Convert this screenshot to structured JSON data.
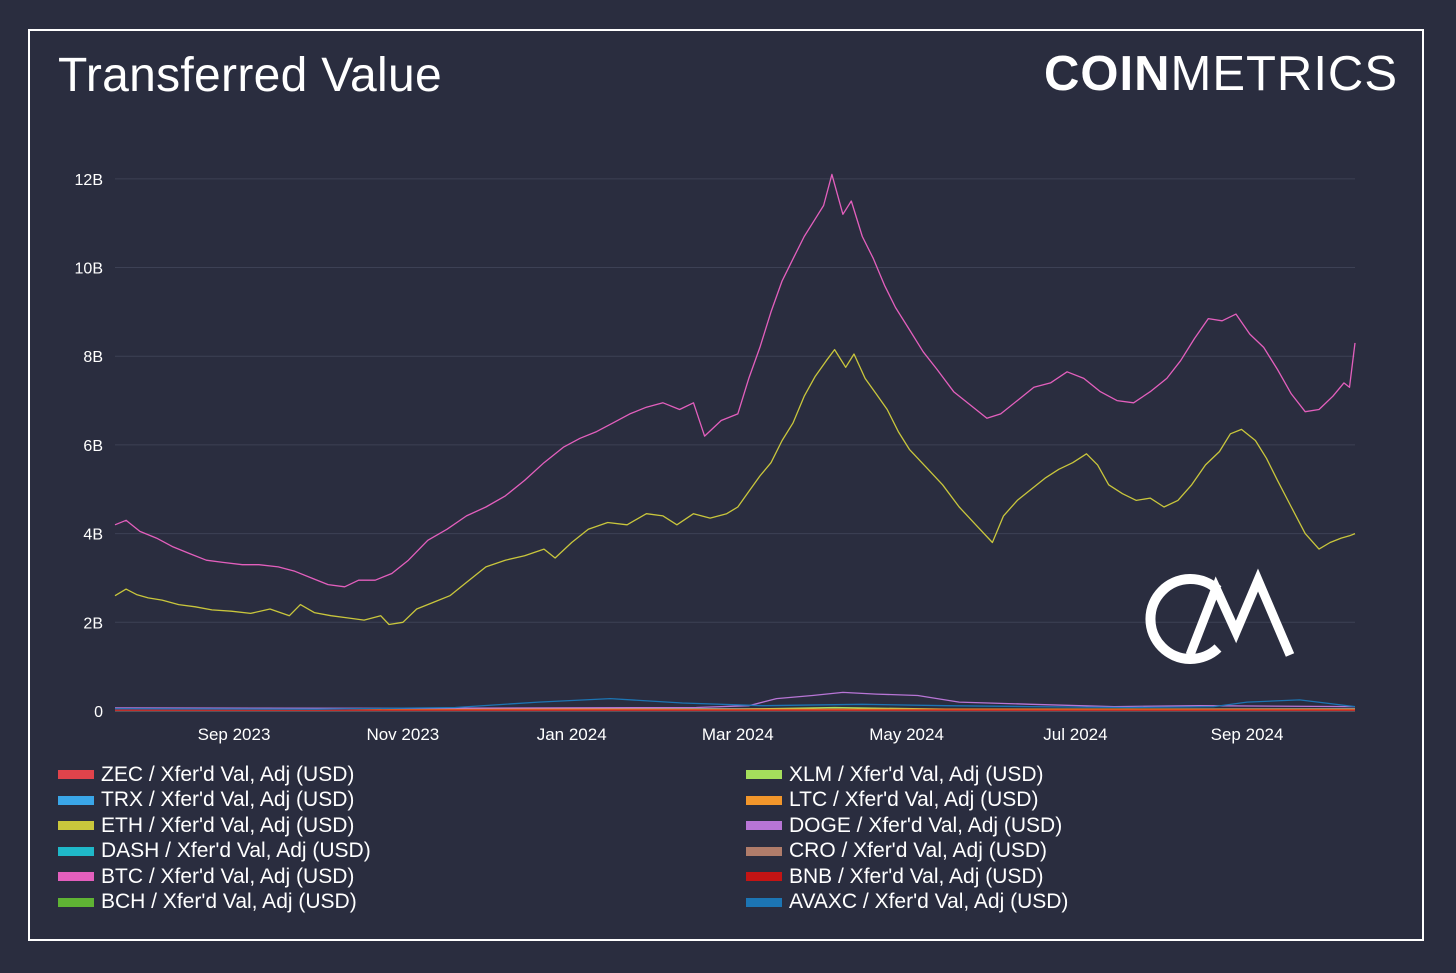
{
  "title": "Transferred Value",
  "brand": {
    "bold": "COIN",
    "light": "METRICS"
  },
  "watermark": "CM",
  "colors": {
    "background": "#2a2d3f",
    "text": "#ffffff",
    "grid": "#3d4155"
  },
  "chart_data": {
    "type": "line",
    "xlabel": "",
    "ylabel": "",
    "x_range": [
      "2023-07-20",
      "2024-10-10"
    ],
    "ylim": [
      0,
      12200000000
    ],
    "yticks": [
      {
        "value": 0,
        "label": "0"
      },
      {
        "value": 2000000000,
        "label": "2B"
      },
      {
        "value": 4000000000,
        "label": "4B"
      },
      {
        "value": 6000000000,
        "label": "6B"
      },
      {
        "value": 8000000000,
        "label": "8B"
      },
      {
        "value": 10000000000,
        "label": "10B"
      },
      {
        "value": 12000000000,
        "label": "12B"
      }
    ],
    "xticks": [
      {
        "date": "2023-09-01",
        "label": "Sep 2023"
      },
      {
        "date": "2023-11-01",
        "label": "Nov 2023"
      },
      {
        "date": "2024-01-01",
        "label": "Jan 2024"
      },
      {
        "date": "2024-03-01",
        "label": "Mar 2024"
      },
      {
        "date": "2024-05-01",
        "label": "May 2024"
      },
      {
        "date": "2024-07-01",
        "label": "Jul 2024"
      },
      {
        "date": "2024-09-01",
        "label": "Sep 2024"
      }
    ],
    "grid": true,
    "legend_position": "bottom",
    "series": [
      {
        "name": "ZEC / Xfer'd Val, Adj (USD)",
        "color": "#e0434b",
        "points": [
          [
            "2023-07-20",
            0.01
          ],
          [
            "2024-10-10",
            0.01
          ]
        ]
      },
      {
        "name": "TRX / Xfer'd Val, Adj (USD)",
        "color": "#3aa6e8",
        "points": [
          [
            "2023-07-20",
            0.05
          ],
          [
            "2023-10-15",
            0.03
          ],
          [
            "2024-01-01",
            0.06
          ],
          [
            "2024-03-01",
            0.05
          ],
          [
            "2024-05-01",
            0.04
          ],
          [
            "2024-07-01",
            0.04
          ],
          [
            "2024-10-10",
            0.05
          ]
        ]
      },
      {
        "name": "ETH / Xfer'd Val, Adj (USD)",
        "color": "#c9c63c",
        "points": [
          [
            "2023-07-20",
            2.6
          ],
          [
            "2023-07-24",
            2.75
          ],
          [
            "2023-07-28",
            2.62
          ],
          [
            "2023-08-01",
            2.55
          ],
          [
            "2023-08-06",
            2.5
          ],
          [
            "2023-08-12",
            2.4
          ],
          [
            "2023-08-18",
            2.35
          ],
          [
            "2023-08-24",
            2.28
          ],
          [
            "2023-08-31",
            2.25
          ],
          [
            "2023-09-07",
            2.2
          ],
          [
            "2023-09-14",
            2.3
          ],
          [
            "2023-09-21",
            2.15
          ],
          [
            "2023-09-25",
            2.4
          ],
          [
            "2023-09-30",
            2.22
          ],
          [
            "2023-10-06",
            2.15
          ],
          [
            "2023-10-12",
            2.1
          ],
          [
            "2023-10-18",
            2.05
          ],
          [
            "2023-10-24",
            2.15
          ],
          [
            "2023-10-27",
            1.95
          ],
          [
            "2023-11-01",
            2.0
          ],
          [
            "2023-11-06",
            2.3
          ],
          [
            "2023-11-12",
            2.45
          ],
          [
            "2023-11-18",
            2.6
          ],
          [
            "2023-11-24",
            2.9
          ],
          [
            "2023-12-01",
            3.25
          ],
          [
            "2023-12-08",
            3.4
          ],
          [
            "2023-12-15",
            3.5
          ],
          [
            "2023-12-22",
            3.65
          ],
          [
            "2023-12-26",
            3.45
          ],
          [
            "2024-01-01",
            3.8
          ],
          [
            "2024-01-07",
            4.1
          ],
          [
            "2024-01-14",
            4.25
          ],
          [
            "2024-01-21",
            4.2
          ],
          [
            "2024-01-28",
            4.45
          ],
          [
            "2024-02-03",
            4.4
          ],
          [
            "2024-02-08",
            4.2
          ],
          [
            "2024-02-14",
            4.45
          ],
          [
            "2024-02-20",
            4.35
          ],
          [
            "2024-02-26",
            4.45
          ],
          [
            "2024-03-01",
            4.6
          ],
          [
            "2024-03-05",
            4.95
          ],
          [
            "2024-03-09",
            5.3
          ],
          [
            "2024-03-13",
            5.6
          ],
          [
            "2024-03-17",
            6.1
          ],
          [
            "2024-03-21",
            6.5
          ],
          [
            "2024-03-25",
            7.1
          ],
          [
            "2024-03-29",
            7.55
          ],
          [
            "2024-04-02",
            7.9
          ],
          [
            "2024-04-05",
            8.15
          ],
          [
            "2024-04-09",
            7.75
          ],
          [
            "2024-04-12",
            8.05
          ],
          [
            "2024-04-16",
            7.5
          ],
          [
            "2024-04-20",
            7.15
          ],
          [
            "2024-04-24",
            6.8
          ],
          [
            "2024-04-28",
            6.3
          ],
          [
            "2024-05-02",
            5.9
          ],
          [
            "2024-05-08",
            5.5
          ],
          [
            "2024-05-14",
            5.1
          ],
          [
            "2024-05-20",
            4.6
          ],
          [
            "2024-05-26",
            4.2
          ],
          [
            "2024-06-01",
            3.8
          ],
          [
            "2024-06-05",
            4.4
          ],
          [
            "2024-06-10",
            4.75
          ],
          [
            "2024-06-15",
            5.0
          ],
          [
            "2024-06-20",
            5.25
          ],
          [
            "2024-06-25",
            5.45
          ],
          [
            "2024-06-30",
            5.6
          ],
          [
            "2024-07-05",
            5.8
          ],
          [
            "2024-07-09",
            5.55
          ],
          [
            "2024-07-13",
            5.1
          ],
          [
            "2024-07-18",
            4.9
          ],
          [
            "2024-07-23",
            4.75
          ],
          [
            "2024-07-28",
            4.8
          ],
          [
            "2024-08-02",
            4.6
          ],
          [
            "2024-08-07",
            4.75
          ],
          [
            "2024-08-12",
            5.1
          ],
          [
            "2024-08-17",
            5.55
          ],
          [
            "2024-08-22",
            5.85
          ],
          [
            "2024-08-26",
            6.25
          ],
          [
            "2024-08-30",
            6.35
          ],
          [
            "2024-09-04",
            6.1
          ],
          [
            "2024-09-08",
            5.7
          ],
          [
            "2024-09-12",
            5.2
          ],
          [
            "2024-09-17",
            4.6
          ],
          [
            "2024-09-22",
            4.0
          ],
          [
            "2024-09-27",
            3.65
          ],
          [
            "2024-10-01",
            3.8
          ],
          [
            "2024-10-05",
            3.9
          ],
          [
            "2024-10-08",
            3.95
          ],
          [
            "2024-10-10",
            4.0
          ]
        ]
      },
      {
        "name": "DASH / Xfer'd Val, Adj (USD)",
        "color": "#1fb8c9",
        "points": [
          [
            "2023-07-20",
            0.01
          ],
          [
            "2024-10-10",
            0.01
          ]
        ]
      },
      {
        "name": "BTC / Xfer'd Val, Adj (USD)",
        "color": "#e35fbd",
        "points": [
          [
            "2023-07-20",
            4.2
          ],
          [
            "2023-07-24",
            4.3
          ],
          [
            "2023-07-29",
            4.05
          ],
          [
            "2023-08-04",
            3.9
          ],
          [
            "2023-08-10",
            3.7
          ],
          [
            "2023-08-16",
            3.55
          ],
          [
            "2023-08-22",
            3.4
          ],
          [
            "2023-08-28",
            3.35
          ],
          [
            "2023-09-04",
            3.3
          ],
          [
            "2023-09-10",
            3.3
          ],
          [
            "2023-09-17",
            3.25
          ],
          [
            "2023-09-23",
            3.15
          ],
          [
            "2023-09-29",
            3.0
          ],
          [
            "2023-10-05",
            2.85
          ],
          [
            "2023-10-11",
            2.8
          ],
          [
            "2023-10-16",
            2.95
          ],
          [
            "2023-10-22",
            2.95
          ],
          [
            "2023-10-28",
            3.1
          ],
          [
            "2023-11-03",
            3.4
          ],
          [
            "2023-11-10",
            3.85
          ],
          [
            "2023-11-17",
            4.1
          ],
          [
            "2023-11-24",
            4.4
          ],
          [
            "2023-12-01",
            4.6
          ],
          [
            "2023-12-08",
            4.85
          ],
          [
            "2023-12-15",
            5.2
          ],
          [
            "2023-12-22",
            5.6
          ],
          [
            "2023-12-29",
            5.95
          ],
          [
            "2024-01-04",
            6.15
          ],
          [
            "2024-01-10",
            6.3
          ],
          [
            "2024-01-16",
            6.5
          ],
          [
            "2024-01-22",
            6.7
          ],
          [
            "2024-01-28",
            6.85
          ],
          [
            "2024-02-03",
            6.95
          ],
          [
            "2024-02-09",
            6.8
          ],
          [
            "2024-02-14",
            6.95
          ],
          [
            "2024-02-18",
            6.2
          ],
          [
            "2024-02-24",
            6.55
          ],
          [
            "2024-03-01",
            6.7
          ],
          [
            "2024-03-05",
            7.5
          ],
          [
            "2024-03-09",
            8.2
          ],
          [
            "2024-03-13",
            9.0
          ],
          [
            "2024-03-17",
            9.7
          ],
          [
            "2024-03-21",
            10.2
          ],
          [
            "2024-03-25",
            10.7
          ],
          [
            "2024-03-29",
            11.1
          ],
          [
            "2024-04-01",
            11.4
          ],
          [
            "2024-04-04",
            12.1
          ],
          [
            "2024-04-08",
            11.2
          ],
          [
            "2024-04-11",
            11.5
          ],
          [
            "2024-04-15",
            10.7
          ],
          [
            "2024-04-19",
            10.2
          ],
          [
            "2024-04-23",
            9.6
          ],
          [
            "2024-04-27",
            9.1
          ],
          [
            "2024-05-02",
            8.6
          ],
          [
            "2024-05-07",
            8.1
          ],
          [
            "2024-05-12",
            7.7
          ],
          [
            "2024-05-18",
            7.2
          ],
          [
            "2024-05-24",
            6.9
          ],
          [
            "2024-05-30",
            6.6
          ],
          [
            "2024-06-04",
            6.7
          ],
          [
            "2024-06-10",
            7.0
          ],
          [
            "2024-06-16",
            7.3
          ],
          [
            "2024-06-22",
            7.4
          ],
          [
            "2024-06-28",
            7.65
          ],
          [
            "2024-07-04",
            7.5
          ],
          [
            "2024-07-10",
            7.2
          ],
          [
            "2024-07-16",
            7.0
          ],
          [
            "2024-07-22",
            6.95
          ],
          [
            "2024-07-28",
            7.2
          ],
          [
            "2024-08-03",
            7.5
          ],
          [
            "2024-08-08",
            7.9
          ],
          [
            "2024-08-13",
            8.4
          ],
          [
            "2024-08-18",
            8.85
          ],
          [
            "2024-08-23",
            8.8
          ],
          [
            "2024-08-28",
            8.95
          ],
          [
            "2024-09-02",
            8.5
          ],
          [
            "2024-09-07",
            8.2
          ],
          [
            "2024-09-12",
            7.7
          ],
          [
            "2024-09-17",
            7.15
          ],
          [
            "2024-09-22",
            6.75
          ],
          [
            "2024-09-27",
            6.8
          ],
          [
            "2024-10-02",
            7.1
          ],
          [
            "2024-10-06",
            7.4
          ],
          [
            "2024-10-08",
            7.3
          ],
          [
            "2024-10-10",
            8.3
          ]
        ]
      },
      {
        "name": "BCH / Xfer'd Val, Adj (USD)",
        "color": "#5fb334",
        "points": [
          [
            "2023-07-20",
            0.02
          ],
          [
            "2024-10-10",
            0.02
          ]
        ]
      },
      {
        "name": "XLM / Xfer'd Val, Adj (USD)",
        "color": "#a5de5c",
        "points": [
          [
            "2023-07-20",
            0.03
          ],
          [
            "2024-03-01",
            0.04
          ],
          [
            "2024-04-05",
            0.08
          ],
          [
            "2024-05-15",
            0.04
          ],
          [
            "2024-10-10",
            0.03
          ]
        ]
      },
      {
        "name": "LTC / Xfer'd Val, Adj (USD)",
        "color": "#f2962b",
        "points": [
          [
            "2023-07-20",
            0.04
          ],
          [
            "2024-10-10",
            0.04
          ]
        ]
      },
      {
        "name": "DOGE / Xfer'd Val, Adj (USD)",
        "color": "#b875d6",
        "points": [
          [
            "2023-07-20",
            0.07
          ],
          [
            "2023-11-01",
            0.06
          ],
          [
            "2024-02-15",
            0.08
          ],
          [
            "2024-03-05",
            0.12
          ],
          [
            "2024-03-15",
            0.28
          ],
          [
            "2024-03-28",
            0.35
          ],
          [
            "2024-04-08",
            0.42
          ],
          [
            "2024-04-20",
            0.38
          ],
          [
            "2024-05-05",
            0.35
          ],
          [
            "2024-05-20",
            0.2
          ],
          [
            "2024-06-15",
            0.15
          ],
          [
            "2024-07-15",
            0.1
          ],
          [
            "2024-08-15",
            0.12
          ],
          [
            "2024-10-10",
            0.1
          ]
        ]
      },
      {
        "name": "CRO / Xfer'd Val, Adj (USD)",
        "color": "#b07c6a",
        "points": [
          [
            "2023-07-20",
            0.01
          ],
          [
            "2024-10-10",
            0.01
          ]
        ]
      },
      {
        "name": "BNB / Xfer'd Val, Adj (USD)",
        "color": "#c41414",
        "points": [
          [
            "2023-07-20",
            0.02
          ],
          [
            "2024-10-10",
            0.02
          ]
        ]
      },
      {
        "name": "AVAXC / Xfer'd Val, Adj (USD)",
        "color": "#1c75b4",
        "points": [
          [
            "2023-07-20",
            0.05
          ],
          [
            "2023-10-01",
            0.04
          ],
          [
            "2023-11-20",
            0.08
          ],
          [
            "2023-12-20",
            0.2
          ],
          [
            "2024-01-15",
            0.28
          ],
          [
            "2024-02-10",
            0.18
          ],
          [
            "2024-03-10",
            0.12
          ],
          [
            "2024-04-15",
            0.15
          ],
          [
            "2024-05-15",
            0.12
          ],
          [
            "2024-06-15",
            0.1
          ],
          [
            "2024-07-20",
            0.08
          ],
          [
            "2024-08-20",
            0.1
          ],
          [
            "2024-09-01",
            0.2
          ],
          [
            "2024-09-20",
            0.25
          ],
          [
            "2024-10-10",
            0.1
          ]
        ]
      }
    ]
  }
}
